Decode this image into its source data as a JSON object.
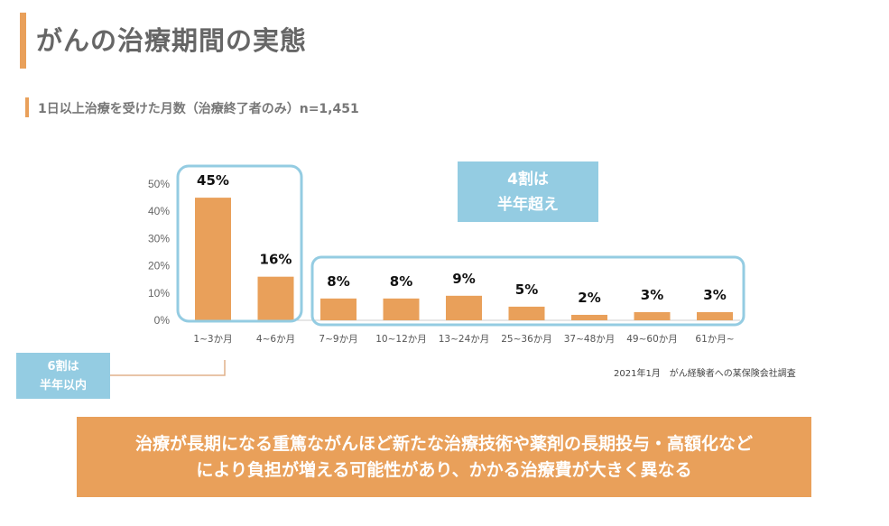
{
  "header": {
    "title": "がんの治療期間の実態",
    "subtitle": "1日以上治療を受けた月数（治療終了者のみ）n=1,451"
  },
  "callouts": {
    "over_half_year": [
      "4割は",
      "半年超え"
    ],
    "within_half_year": [
      "6割は",
      "半年以内"
    ]
  },
  "source": "2021年1月　がん経験者への某保険会社調査",
  "banner": [
    "治療が長期になる重篤ながんほど新たな治療技術や薬剤の長期投与・高額化など",
    "により負担が増える可能性があり、かかる治療費が大きく異なる"
  ],
  "colors": {
    "bar": "#E9A05A",
    "highlight": "#94CCE2",
    "accent": "#E9A05A"
  },
  "chart_data": {
    "type": "bar",
    "categories": [
      "1~3か月",
      "4~6か月",
      "7~9か月",
      "10~12か月",
      "13~24か月",
      "25~36か月",
      "37~48か月",
      "49~60か月",
      "61か月~"
    ],
    "values": [
      45,
      16,
      8,
      8,
      9,
      5,
      2,
      3,
      3
    ],
    "data_labels": [
      "45%",
      "16%",
      "8%",
      "8%",
      "9%",
      "5%",
      "2%",
      "3%",
      "3%"
    ],
    "ylim": [
      0,
      50
    ],
    "yticks": [
      "0%",
      "10%",
      "20%",
      "30%",
      "40%",
      "50%"
    ],
    "grid": false
  }
}
